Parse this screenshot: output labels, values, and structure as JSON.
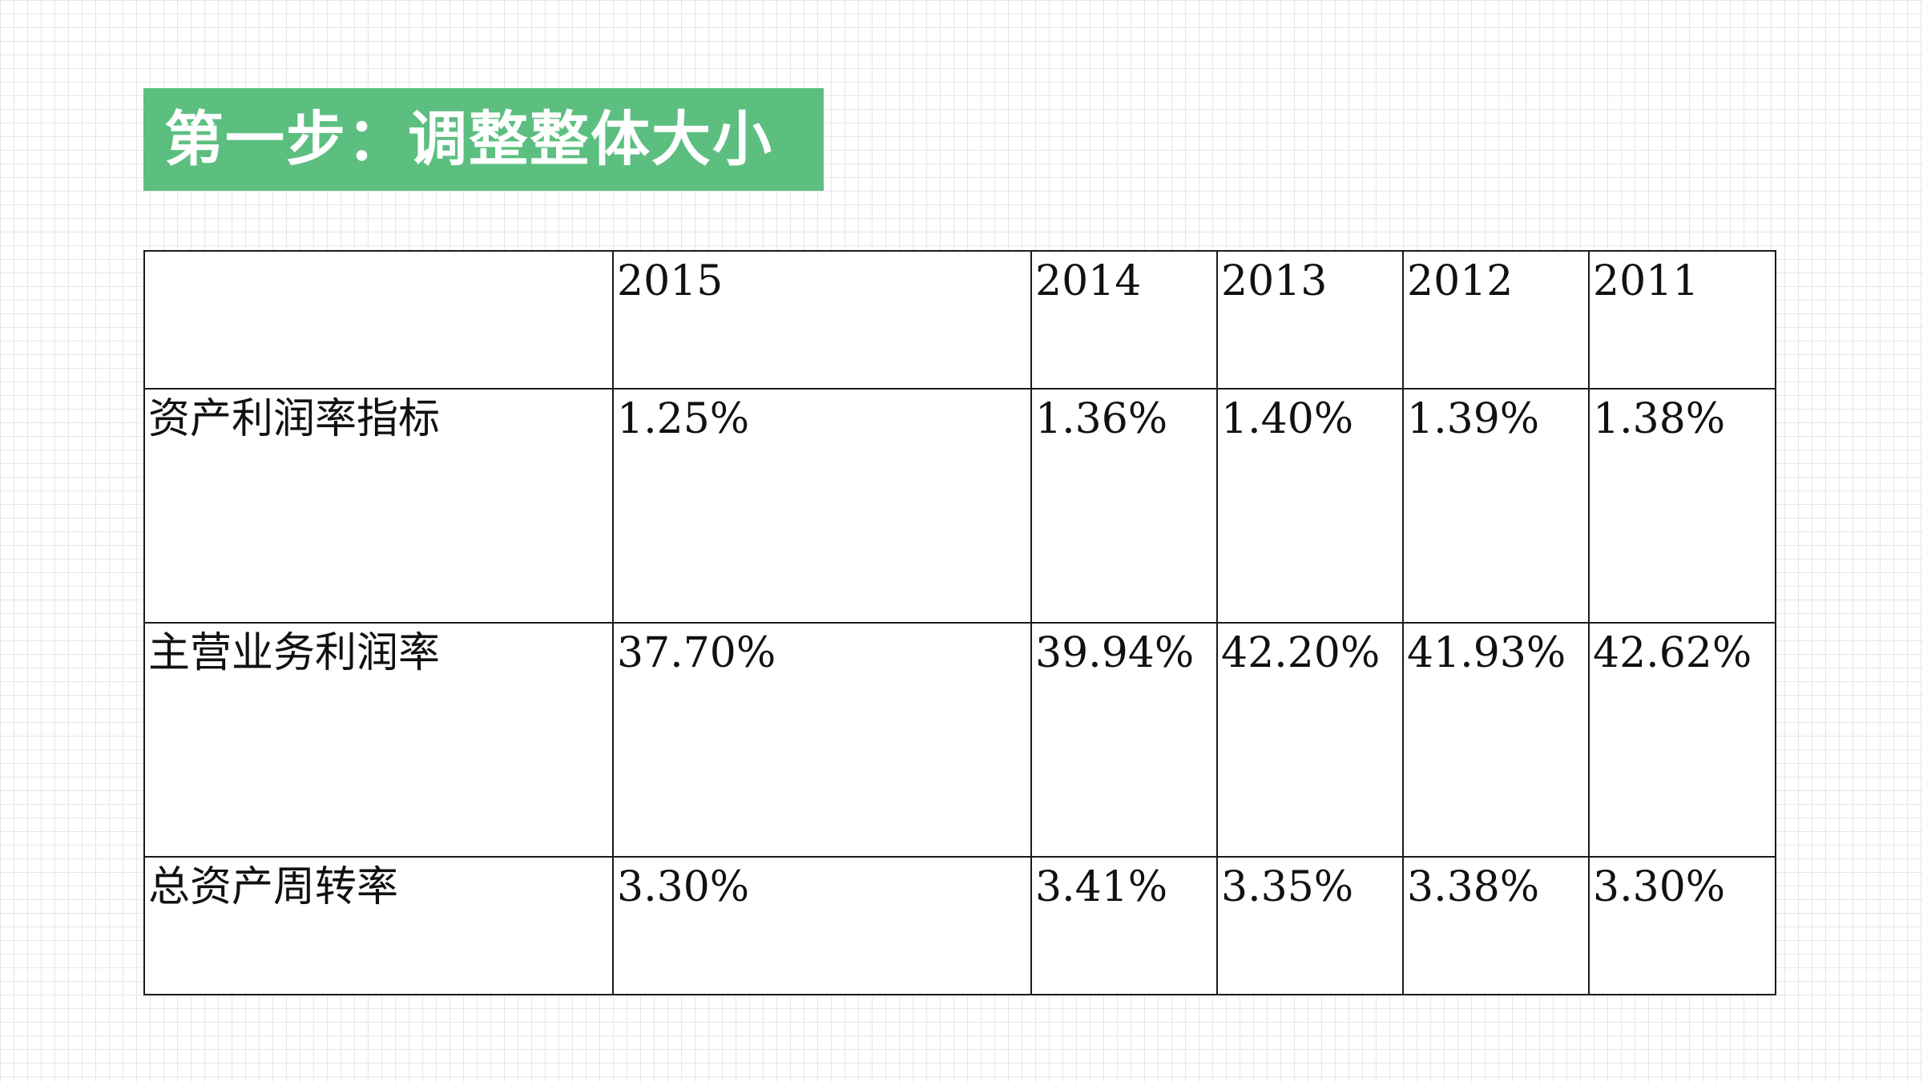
{
  "title": "第一步：调整整体大小",
  "colors": {
    "banner_bg": "#5cbf80",
    "banner_text": "#ffffff",
    "grid_line": "#e6e6e6",
    "table_border": "#1a1a1a"
  },
  "table": {
    "corner": "",
    "years": [
      "2015",
      "2014",
      "2013",
      "2012",
      "2011"
    ],
    "rows": [
      {
        "label": "资产利润率指标",
        "values": [
          "1.25%",
          "1.36%",
          "1.40%",
          "1.39%",
          "1.38%"
        ]
      },
      {
        "label": "主营业务利润率",
        "values": [
          "37.70%",
          "39.94%",
          "42.20%",
          "41.93%",
          "42.62%"
        ]
      },
      {
        "label": "总资产周转率",
        "values": [
          "3.30%",
          "3.41%",
          "3.35%",
          "3.38%",
          "3.30%"
        ]
      }
    ]
  }
}
